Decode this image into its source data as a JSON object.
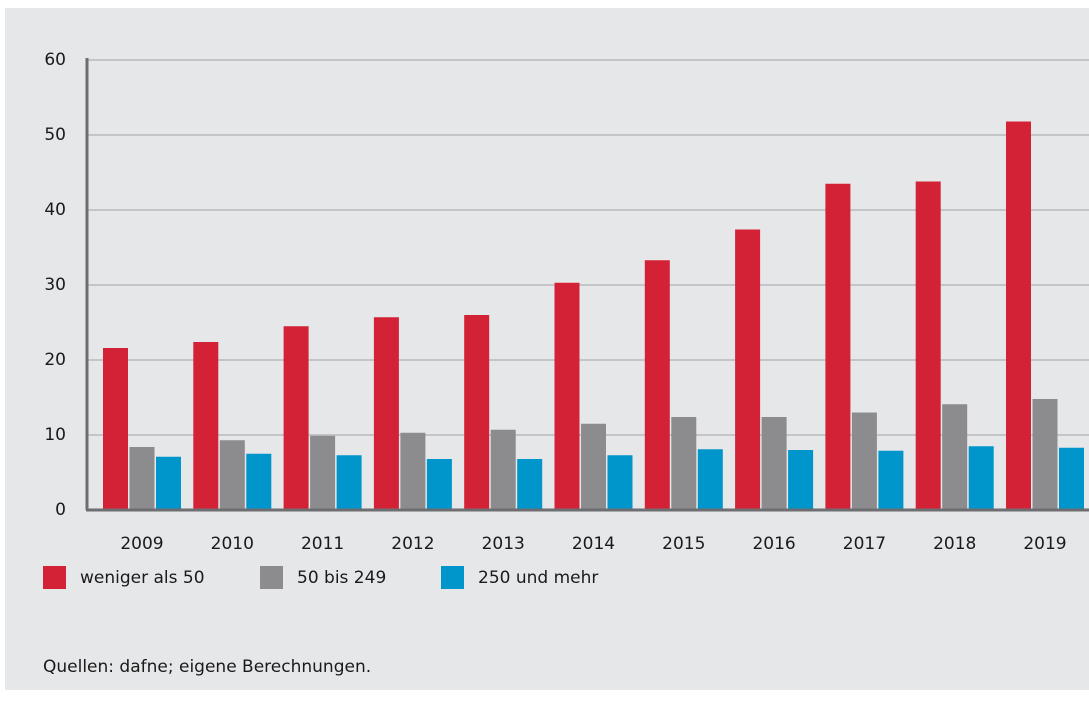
{
  "chart_data": {
    "type": "bar",
    "categories": [
      "2009",
      "2010",
      "2011",
      "2012",
      "2013",
      "2014",
      "2015",
      "2016",
      "2017",
      "2018",
      "2019"
    ],
    "series": [
      {
        "name": "weniger als 50",
        "color": "#d32236",
        "values": [
          21.6,
          22.4,
          24.5,
          25.7,
          26.0,
          30.3,
          33.3,
          37.4,
          43.5,
          43.8,
          51.8
        ]
      },
      {
        "name": "50 bis 249",
        "color": "#8c8c8e",
        "values": [
          8.4,
          9.3,
          9.9,
          10.3,
          10.7,
          11.5,
          12.4,
          12.4,
          13.0,
          14.1,
          14.8
        ]
      },
      {
        "name": "250 und mehr",
        "color": "#0096cc",
        "values": [
          7.1,
          7.5,
          7.3,
          6.8,
          6.8,
          7.3,
          8.1,
          8.0,
          7.9,
          8.5,
          8.3
        ]
      }
    ],
    "ylim": [
      0,
      60
    ],
    "yticks": [
      0,
      10,
      20,
      30,
      40,
      50,
      60
    ],
    "grid": true,
    "source": "Quellen: dafne; eigene Berechnungen."
  }
}
